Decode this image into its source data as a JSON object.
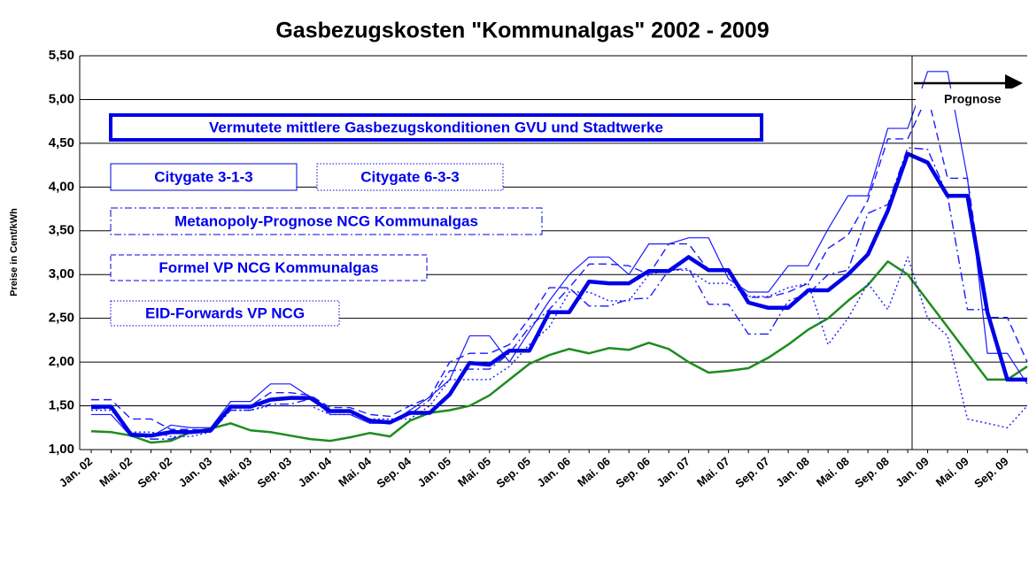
{
  "chart_data": {
    "type": "line",
    "title": "Gasbezugskosten \"Kommunalgas\" 2002 - 2009",
    "y_label": "Preise in Cent/kWh",
    "annotation": "Prognose",
    "categories": [
      "Jan. 02",
      null,
      "Mai. 02",
      null,
      "Sep. 02",
      null,
      "Jan. 03",
      null,
      "Mai. 03",
      null,
      "Sep. 03",
      null,
      "Jan. 04",
      null,
      "Mai. 04",
      null,
      "Sep. 04",
      null,
      "Jan. 05",
      null,
      "Mai. 05",
      null,
      "Sep. 05",
      null,
      "Jan. 06",
      null,
      "Mai. 06",
      null,
      "Sep. 06",
      null,
      "Jan. 07",
      null,
      "Mai. 07",
      null,
      "Sep. 07",
      null,
      "Jan. 08",
      null,
      "Mai. 08",
      null,
      "Sep. 08",
      null,
      "Jan. 09",
      null,
      "Mai. 09",
      null,
      "Sep. 09",
      null
    ],
    "ylim": [
      1,
      5.5
    ],
    "yticks": [
      {
        "value": 1,
        "label": "1,00"
      },
      {
        "value": 1.5,
        "label": "1,50"
      },
      {
        "value": 2,
        "label": "2,00"
      },
      {
        "value": 2.5,
        "label": "2,50"
      },
      {
        "value": 3,
        "label": "3,00"
      },
      {
        "value": 3.5,
        "label": "3,50"
      },
      {
        "value": 4,
        "label": "4,00"
      },
      {
        "value": 4.5,
        "label": "4,50"
      },
      {
        "value": 5,
        "label": "5,00"
      },
      {
        "value": 5.5,
        "label": "5,50"
      }
    ],
    "grid": true,
    "series": [
      {
        "name": "Vermutete mittlere Gasbezugskonditionen GVU und Stadtwerke",
        "color": "#0000e6",
        "style": "solid",
        "width": 4.5,
        "values": [
          1.49,
          1.49,
          1.17,
          1.16,
          1.2,
          1.2,
          1.22,
          1.49,
          1.49,
          1.57,
          1.59,
          1.59,
          1.44,
          1.44,
          1.33,
          1.31,
          1.42,
          1.42,
          1.63,
          1.99,
          1.97,
          2.13,
          2.13,
          2.57,
          2.57,
          2.92,
          2.9,
          2.9,
          3.04,
          3.04,
          3.2,
          3.05,
          3.05,
          2.68,
          2.62,
          2.62,
          2.82,
          2.82,
          3.0,
          3.23,
          3.73,
          4.38,
          4.28,
          3.9,
          3.9,
          2.57,
          1.8,
          1.8
        ]
      },
      {
        "name": "Citygate 3-1-3",
        "color": "#1a1aff",
        "style": "solid",
        "width": 1.2,
        "values": [
          1.4,
          1.4,
          1.15,
          1.15,
          1.28,
          1.25,
          1.25,
          1.55,
          1.55,
          1.75,
          1.75,
          1.6,
          1.4,
          1.4,
          1.3,
          1.3,
          1.45,
          1.6,
          1.8,
          2.3,
          2.3,
          2.0,
          2.35,
          2.7,
          3.0,
          3.2,
          3.2,
          3.0,
          3.35,
          3.35,
          3.42,
          3.42,
          2.95,
          2.8,
          2.8,
          3.1,
          3.1,
          3.52,
          3.9,
          3.9,
          4.67,
          4.67,
          5.32,
          5.32,
          4.1,
          2.1,
          2.1,
          1.75
        ]
      },
      {
        "name": "Citygate 6-3-3",
        "color": "#1a1aff",
        "style": "dotted",
        "width": 1.4,
        "values": [
          1.45,
          1.45,
          1.2,
          1.2,
          1.15,
          1.15,
          1.2,
          1.45,
          1.45,
          1.5,
          1.5,
          1.5,
          1.4,
          1.4,
          1.35,
          1.35,
          1.35,
          1.5,
          1.8,
          1.8,
          1.8,
          1.95,
          2.2,
          2.4,
          2.8,
          2.8,
          2.7,
          2.7,
          3.0,
          3.05,
          3.05,
          2.9,
          2.9,
          2.75,
          2.75,
          2.85,
          2.9,
          2.2,
          2.5,
          2.9,
          2.6,
          3.2,
          2.5,
          2.3,
          1.35,
          1.3,
          1.25,
          1.5
        ]
      },
      {
        "name": "Metanopoly-Prognose NCG Kommunalgas",
        "color": "#1a1aff",
        "style": "dashdot",
        "width": 1.4,
        "values": [
          1.47,
          1.47,
          1.2,
          1.12,
          1.12,
          1.2,
          1.2,
          1.45,
          1.45,
          1.52,
          1.52,
          1.58,
          1.45,
          1.45,
          1.33,
          1.33,
          1.4,
          1.57,
          1.9,
          1.92,
          1.92,
          2.1,
          2.4,
          2.6,
          2.85,
          2.64,
          2.64,
          2.72,
          2.73,
          3.05,
          3.07,
          2.66,
          2.66,
          2.32,
          2.32,
          2.7,
          2.78,
          3.0,
          3.05,
          3.7,
          3.8,
          4.45,
          4.43,
          3.9,
          2.6,
          2.6,
          1.8,
          1.8
        ]
      },
      {
        "name": "Formel VP NCG Kommunalgas",
        "color": "#1a1aff",
        "style": "dashed",
        "width": 1.4,
        "values": [
          1.57,
          1.57,
          1.35,
          1.35,
          1.23,
          1.23,
          1.22,
          1.5,
          1.5,
          1.65,
          1.65,
          1.62,
          1.48,
          1.48,
          1.4,
          1.38,
          1.5,
          1.6,
          2.0,
          2.1,
          2.1,
          2.2,
          2.5,
          2.85,
          2.85,
          3.12,
          3.12,
          3.1,
          3.0,
          3.35,
          3.35,
          3.05,
          3.05,
          2.74,
          2.74,
          2.8,
          2.9,
          3.3,
          3.45,
          3.85,
          4.55,
          4.55,
          5.05,
          4.1,
          4.1,
          2.51,
          2.51,
          2.0
        ]
      },
      {
        "name": "EID-Forwards VP NCG",
        "color": "#1e8c1e",
        "style": "solid",
        "width": 2.5,
        "values": [
          1.21,
          1.2,
          1.16,
          1.08,
          1.1,
          1.2,
          1.24,
          1.3,
          1.22,
          1.2,
          1.16,
          1.12,
          1.1,
          1.14,
          1.19,
          1.15,
          1.33,
          1.42,
          1.45,
          1.5,
          1.62,
          1.8,
          1.98,
          2.08,
          2.15,
          2.1,
          2.16,
          2.14,
          2.22,
          2.15,
          2.0,
          1.88,
          1.9,
          1.93,
          2.05,
          2.2,
          2.37,
          2.5,
          2.7,
          2.88,
          3.15,
          3.0,
          2.7,
          2.4,
          2.1,
          1.8,
          1.8,
          1.95
        ]
      }
    ]
  }
}
